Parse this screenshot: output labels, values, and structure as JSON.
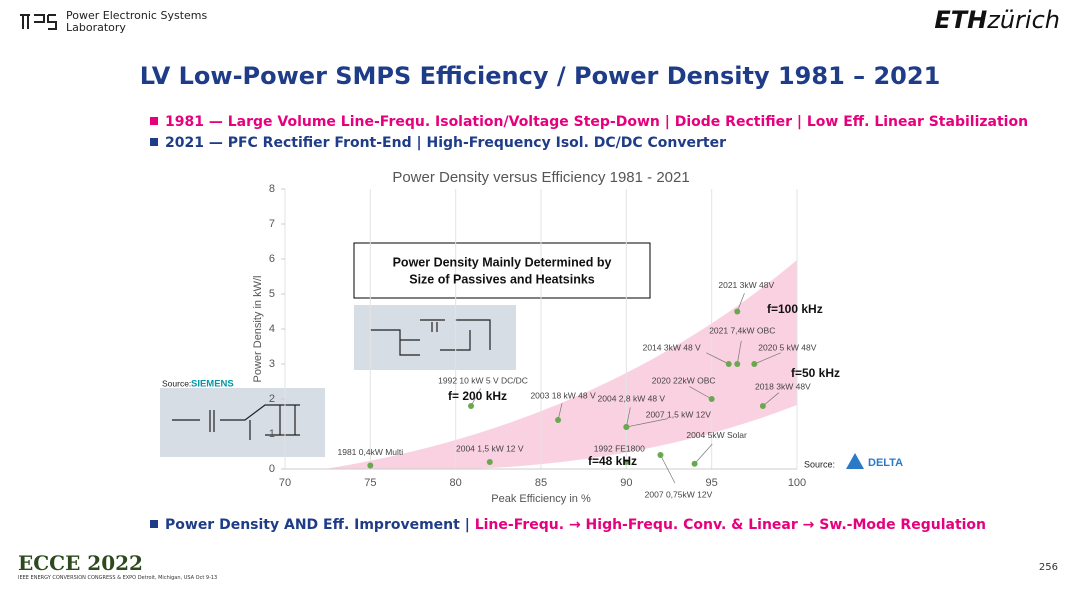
{
  "header": {
    "lab_line1": "Power Electronic Systems",
    "lab_line2": "Laboratory",
    "eth": "ETH",
    "zurich": "zürich"
  },
  "title": "LV Low-Power SMPS Efficiency / Power Density 1981 – 2021",
  "bullets": [
    "1981 —  Large Volume Line-Frequ. Isolation/Voltage Step-Down | Diode Rectifier | Low Eff. Linear Stabilization",
    "2021 —  PFC Rectifier Front-End | High-Frequency Isol. DC/DC Converter"
  ],
  "bottom": {
    "blue": "Power Density AND Eff. Improvement | ",
    "pink": "Line-Frequ. → High-Frequ. Conv.  & Linear → Sw.-Mode Regulation"
  },
  "footer": {
    "logo": "ECCE 2022",
    "event": "IEEE ENERGY CONVERSION CONGRESS & EXPO  Detroit, Michigan, USA Oct 9-13",
    "page": "256"
  },
  "chart_data": {
    "type": "scatter",
    "title": "Power Density versus Efficiency 1981 - 2021",
    "xlabel": "Peak Efficiency in %",
    "ylabel": "Power Density in kW/l",
    "x": [
      75,
      80.9,
      82,
      86,
      90,
      90,
      92,
      94,
      95,
      98,
      96,
      96.5,
      97.5,
      96.5,
      90
    ],
    "values": [
      0.1,
      1.8,
      0.2,
      1.4,
      1.2,
      0.2,
      0.4,
      0.15,
      2,
      1.8,
      3,
      3,
      3,
      4.5,
      1.2
    ],
    "point_labels": [
      "1981 0,4kW Multi",
      "1992 10 kW 5 V DC/DC",
      "2004 1,5 kW 12 V",
      "2003 18 kW 48 V",
      "2004 2,8 kW 48 V",
      "1992 FE1800",
      "2007 0,75kW 12V",
      "2004 5kW Solar",
      "2020 22kW OBC",
      "2018 3kW 48V",
      "2014 3kW 48 V",
      "2021 7,4kW OBC",
      "2020 5 kW 48V",
      "2021 3kW 48V",
      "2007 1,5 kW 12V"
    ],
    "color": "#6aa84f",
    "xlim": [
      70,
      100
    ],
    "ylim": [
      0,
      8
    ],
    "xticks": [
      70,
      75,
      80,
      85,
      90,
      95,
      100
    ],
    "yticks": [
      0,
      1,
      2,
      3,
      4,
      5,
      6,
      7,
      8
    ],
    "grid": "x",
    "annotations": [
      "f= 200 kHz",
      "f=48 kHz",
      "f=100 kHz",
      "f=50 kHz"
    ],
    "box_text": [
      "Power Density Mainly Determined by",
      "Size of Passives and Heatsinks"
    ],
    "sources": {
      "left_prefix": "Source:",
      "left": "SIEMENS",
      "right_prefix": "Source:",
      "right": "DELTA"
    }
  }
}
